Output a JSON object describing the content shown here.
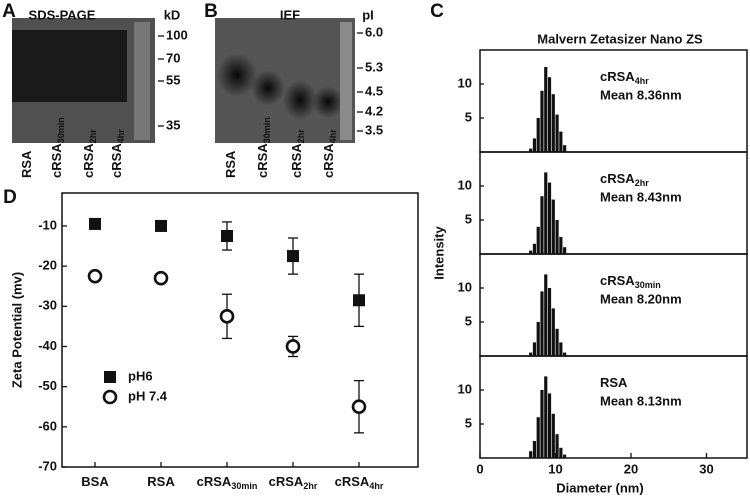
{
  "gels": [
    {
      "panel": "A",
      "title": "SDS-PAGE",
      "unit": "kD",
      "markers": [
        "100",
        "70",
        "55",
        "35"
      ],
      "lanes": [
        {
          "text": "RSA"
        },
        {
          "text": "cRSA",
          "sub": "30min"
        },
        {
          "text": "cRSA",
          "sub": "2hr"
        },
        {
          "text": "cRSA",
          "sub": "4hr"
        }
      ]
    },
    {
      "panel": "B",
      "title": "IEF",
      "unit": "pI",
      "markers": [
        "6.0",
        "5.3",
        "4.5",
        "4.2",
        "3.5"
      ],
      "lanes": [
        {
          "text": "RSA"
        },
        {
          "text": "cRSA",
          "sub": "30min"
        },
        {
          "text": "cRSA",
          "sub": "2hr"
        },
        {
          "text": "cRSA",
          "sub": "4hr"
        }
      ]
    }
  ],
  "chart_data": [
    {
      "type": "scatter",
      "panel": "D",
      "ylabel": "Zeta Potential (mv)",
      "categories": [
        {
          "text": "BSA"
        },
        {
          "text": "RSA"
        },
        {
          "text": "cRSA",
          "sub": "30min"
        },
        {
          "text": "cRSA",
          "sub": "2hr"
        },
        {
          "text": "cRSA",
          "sub": "4hr"
        }
      ],
      "series": [
        {
          "name": "pH6",
          "marker": "square",
          "color": "#111111",
          "values": [
            -9.5,
            -10,
            -12.5,
            -17.5,
            -28.5
          ],
          "errors": [
            null,
            null,
            3.5,
            4.5,
            6.5
          ]
        },
        {
          "name": "pH 7.4",
          "marker": "circle",
          "color": "#111111",
          "values": [
            -22.5,
            -23,
            -32.5,
            -40,
            -55
          ],
          "errors": [
            null,
            null,
            5.5,
            2.5,
            6.5
          ]
        }
      ],
      "ylim": [
        -70,
        -1.8
      ],
      "yticks": [
        -70,
        -60,
        -50,
        -40,
        -30,
        -20,
        -10
      ],
      "legend": "lower-left"
    },
    {
      "type": "histogram",
      "panel": "C",
      "title": "Malvern Zetasizer Nano ZS",
      "ylabel": "Intensity",
      "label": {
        "text": "cRSA",
        "sub": "4hr"
      },
      "annotation": "Mean 8.36nm",
      "color": "#111111",
      "bins": [
        6.5,
        7,
        7.5,
        8,
        8.5,
        9,
        9.5,
        10,
        10.5,
        11,
        11.5
      ],
      "values": [
        0.5,
        2,
        5,
        9,
        12.5,
        11,
        8.5,
        5.5,
        3,
        1
      ],
      "xlim": [
        0,
        35.5
      ],
      "ylim": [
        0,
        15
      ],
      "yticks": [
        5,
        10
      ]
    },
    {
      "type": "histogram",
      "label": {
        "text": "cRSA",
        "sub": "2hr"
      },
      "annotation": "Mean 8.43nm",
      "color": "#111111",
      "bins": [
        6.5,
        7,
        7.5,
        8,
        8.5,
        9,
        9.5,
        10,
        10.5,
        11,
        11.5
      ],
      "values": [
        0.5,
        1.5,
        4,
        8.5,
        12,
        10.5,
        8,
        5,
        2.5,
        1
      ],
      "xlim": [
        0,
        35.5
      ],
      "ylim": [
        0,
        15
      ],
      "yticks": [
        5,
        10
      ]
    },
    {
      "type": "histogram",
      "label": {
        "text": "cRSA",
        "sub": "30min"
      },
      "annotation": "Mean 8.20nm",
      "color": "#111111",
      "bins": [
        6.5,
        7,
        7.5,
        8,
        8.5,
        9,
        9.5,
        10,
        10.5,
        11,
        11.5
      ],
      "values": [
        0.5,
        2,
        5,
        9.5,
        12,
        10,
        7,
        4,
        2,
        0.5
      ],
      "xlim": [
        0,
        35.5
      ],
      "ylim": [
        0,
        15
      ],
      "yticks": [
        5,
        10
      ]
    },
    {
      "type": "histogram",
      "label": {
        "text": "RSA"
      },
      "annotation": "Mean 8.13nm",
      "color": "#111111",
      "xlabel": "Diameter (nm)",
      "bins": [
        6.5,
        7,
        7.5,
        8,
        8.5,
        9,
        9.5,
        10,
        10.5,
        11,
        11.5
      ],
      "values": [
        1,
        2.5,
        6,
        10,
        12,
        9.5,
        6.5,
        3.5,
        1.5,
        0.5
      ],
      "xlim": [
        0,
        35.5
      ],
      "ylim": [
        0,
        15
      ],
      "yticks": [
        5,
        10
      ],
      "xticks": [
        0,
        10,
        20,
        30
      ]
    }
  ]
}
